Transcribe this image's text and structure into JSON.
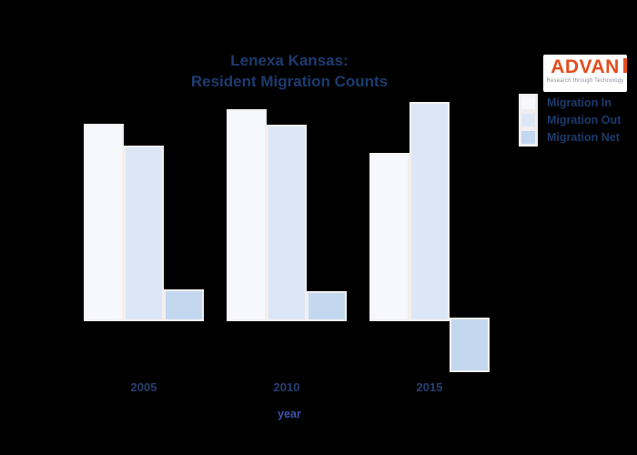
{
  "page": {
    "background_color": "#000000"
  },
  "title": {
    "line1": "Lenexa Kansas:",
    "line2": "Resident Migration Counts",
    "color": "#1d3b70"
  },
  "logo": {
    "name": "ADVAN",
    "tagline": "Research through Technology",
    "brand_color": "#e44d1f",
    "background": "#ffffff"
  },
  "legend": {
    "position": "top-right",
    "text_color": "#1d3a6d",
    "swatch_border_color": "#f2eef0",
    "items": [
      {
        "label": "Migration In",
        "color": "#f7f8fd"
      },
      {
        "label": "Migration Out",
        "color": "#dbe7f7"
      },
      {
        "label": "Migration Net",
        "color": "#c3d8ef"
      }
    ]
  },
  "x_axis": {
    "label": "year",
    "label_color": "#3a55b0",
    "tick_color": "#263f6f"
  },
  "chart_data": {
    "type": "bar",
    "title": "Lenexa Kansas: Resident Migration Counts",
    "xlabel": "year",
    "ylabel": "",
    "categories": [
      "2005",
      "2010",
      "2015"
    ],
    "series": [
      {
        "name": "Migration In",
        "color": "#f7f8fd",
        "values": [
          213,
          229,
          181
        ]
      },
      {
        "name": "Migration Out",
        "color": "#dbe7f7",
        "values": [
          189,
          212,
          237
        ]
      },
      {
        "name": "Migration Net",
        "color": "#c3d8ef",
        "values": [
          31,
          29,
          -56
        ]
      }
    ],
    "value_units": "estimated relative height (no y-axis labels shown)",
    "y_axis_visible": false,
    "grid": false,
    "legend_position": "top-right",
    "notes": "Net bar for last category is negative (extends below baseline); background is black"
  }
}
